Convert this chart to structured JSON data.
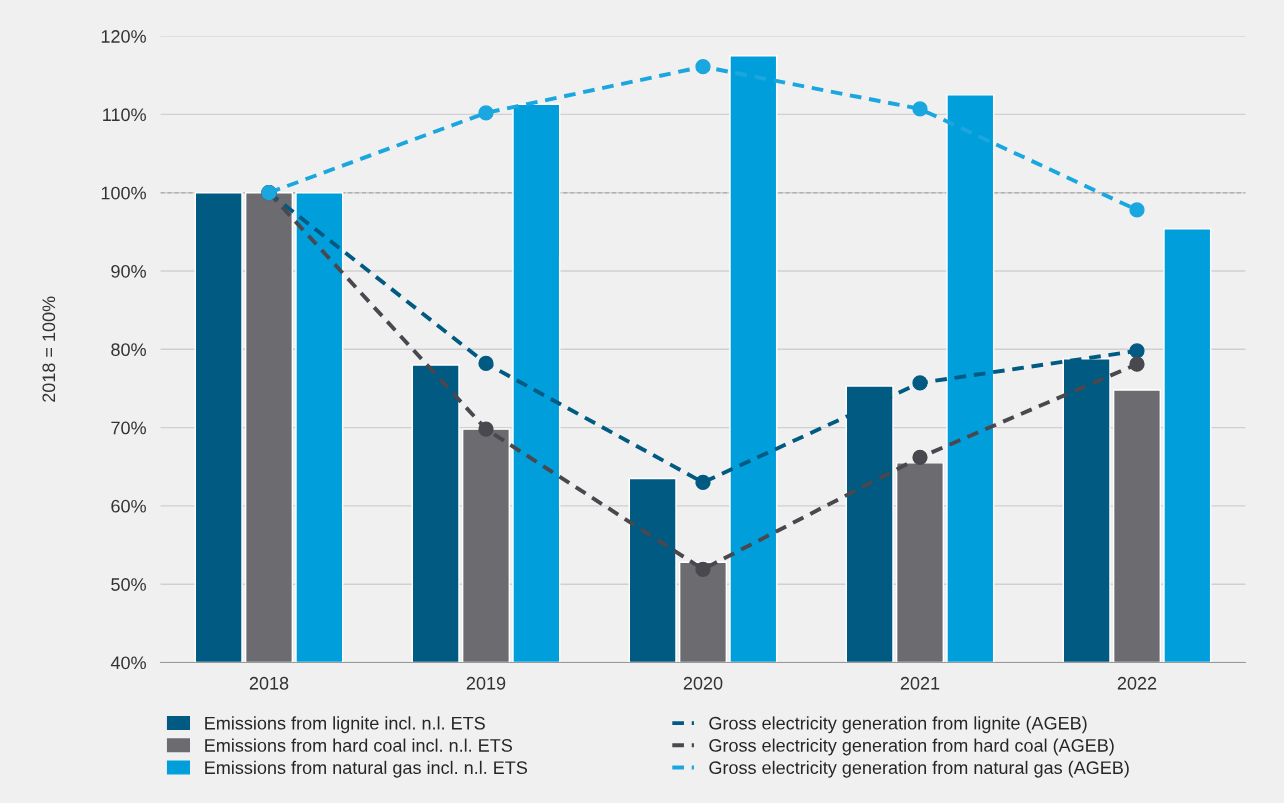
{
  "chart_data": {
    "type": "bar",
    "ylabel": "2018 = 100%",
    "categories": [
      "2018",
      "2019",
      "2020",
      "2021",
      "2022"
    ],
    "series": [
      {
        "name": "Emissions from lignite incl. n.l. ETS",
        "color": "#005a82",
        "values": [
          100,
          78.0,
          63.5,
          75.3,
          78.8
        ]
      },
      {
        "name": "Emissions from hard coal incl. n.l. ETS",
        "color": "#6b6b70",
        "values": [
          100,
          69.8,
          52.8,
          65.5,
          74.8
        ]
      },
      {
        "name": "Emissions from natural gas incl. n.l. ETS",
        "color": "#009fdb",
        "values": [
          100,
          111.3,
          117.5,
          112.5,
          95.4
        ]
      },
      {
        "name": "Gross electricity generation from lignite (AGEB)",
        "type": "line",
        "color": "#005a82",
        "marker": "circle",
        "line_style": "dashed",
        "values": [
          100,
          78.2,
          63.0,
          75.7,
          79.8
        ]
      },
      {
        "name": "Gross electricity generation from hard coal (AGEB)",
        "type": "line",
        "color": "#48484e",
        "marker": "circle",
        "line_style": "dashed",
        "values": [
          100,
          69.8,
          51.9,
          66.2,
          78.1
        ]
      },
      {
        "name": "Gross electricity generation from natural gas (AGEB)",
        "type": "line",
        "color": "#1aa7e0",
        "marker": "circle",
        "line_style": "dashed",
        "values": [
          100,
          110.2,
          116.1,
          110.7,
          97.8
        ]
      }
    ],
    "ylim": [
      40,
      120
    ],
    "yticks": [
      {
        "value": 40,
        "label": "40%"
      },
      {
        "value": 50,
        "label": "50%"
      },
      {
        "value": 60,
        "label": "60%"
      },
      {
        "value": 70,
        "label": "70%"
      },
      {
        "value": 80,
        "label": "80%"
      },
      {
        "value": 90,
        "label": "90%"
      },
      {
        "value": 100,
        "label": "100%"
      },
      {
        "value": 110,
        "label": "110%"
      },
      {
        "value": 120,
        "label": "120%"
      }
    ],
    "ref_lines": [
      {
        "axis": "y",
        "value": 100,
        "color": "#b0b0b0",
        "line_style": "dashed"
      }
    ],
    "grid": "y",
    "legend": "bottom"
  }
}
